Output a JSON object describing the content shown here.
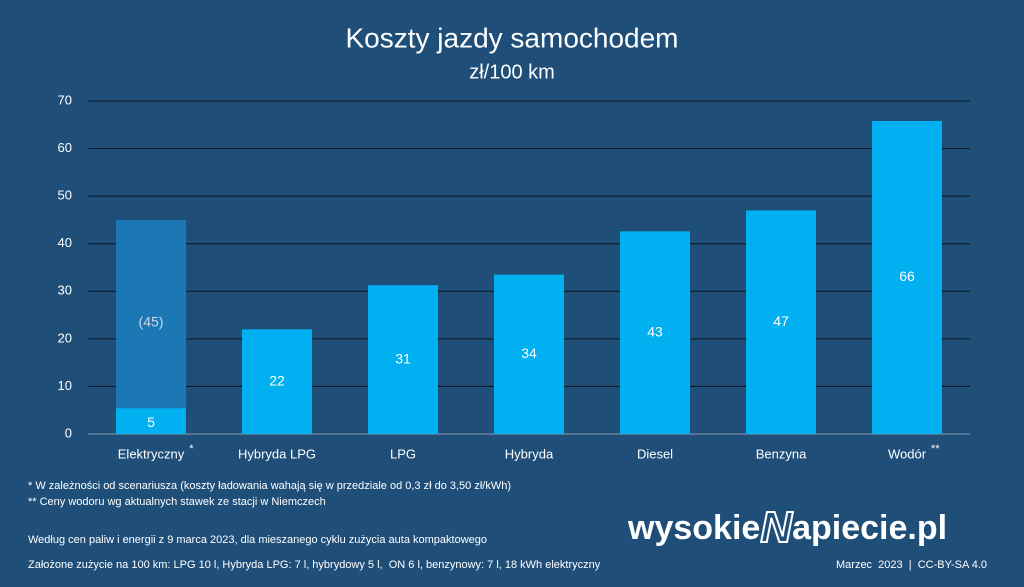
{
  "chart_data": {
    "type": "bar",
    "title": "Koszty jazdy samochodem",
    "subtitle": "zł/100 km",
    "categories": [
      "Elektryczny",
      "Hybryda LPG",
      "LPG",
      "Hybryda",
      "Diesel",
      "Benzyna",
      "Wodór"
    ],
    "category_marks": [
      "*",
      null,
      null,
      null,
      null,
      null,
      "**"
    ],
    "values": [
      5.4,
      22,
      31.3,
      33.5,
      42.6,
      47,
      65.8
    ],
    "value_labels": [
      "5",
      "22",
      "31",
      "34",
      "43",
      "47",
      "66"
    ],
    "color": "#00b0f0",
    "max_values": [
      45,
      null,
      null,
      null,
      null,
      null,
      null
    ],
    "max_value_labels": [
      "(45)",
      null,
      null,
      null,
      null,
      null,
      null
    ],
    "max_color": "#1b78b4",
    "ylim": [
      0,
      70
    ],
    "yticks": [
      0,
      10,
      20,
      30,
      40,
      50,
      60,
      70
    ],
    "grid": true
  },
  "notes": [
    "* W zależności od scenariusza (koszty ładowania wahają się w przedziale od 0,3 zł do 3,50 zł/kWh)",
    "** Ceny wodoru wg aktualnych stawek ze stacji w Niemczech"
  ],
  "source": [
    "Według cen paliw i energii z 9 marca 2023, dla mieszanego cyklu zużycia auta kompaktowego",
    "Założone zużycie na 100 km: LPG 10 l, Hybryda LPG: 7 l, hybrydowy 5 l,  ON 6 l, benzynowy: 7 l, 18 kWh elektryczny"
  ],
  "logo": [
    "wysokie",
    "N",
    "apiecie.pl"
  ],
  "credit": "Marzec  2023  |  CC-BY-SA 4.0"
}
